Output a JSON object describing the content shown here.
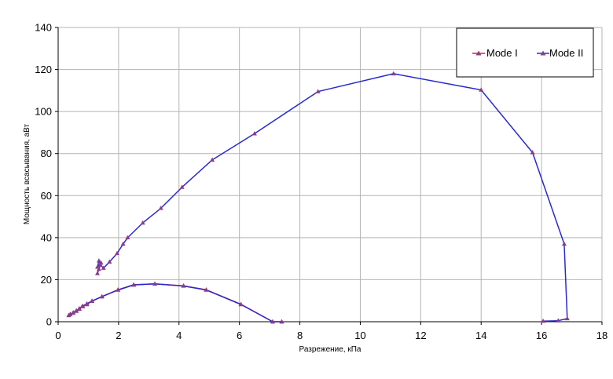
{
  "chart_data": {
    "type": "line",
    "xlabel": "Разрежение, кПа",
    "ylabel": "Мощность всасывания, аВт",
    "xlim": [
      0,
      18
    ],
    "ylim": [
      0,
      140
    ],
    "x_ticks": [
      "0",
      "2",
      "4",
      "6",
      "8",
      "10",
      "12",
      "14",
      "16",
      "18"
    ],
    "y_ticks": [
      "0",
      "20",
      "40",
      "60",
      "80",
      "100",
      "120",
      "140"
    ],
    "grid": true,
    "legend_position": "top-right",
    "colors": {
      "Mode I": "#e8202a",
      "Mode II": "#2a2ad0",
      "marker": "#8a3d8a"
    },
    "series": [
      {
        "name": "Mode I",
        "points": [
          [
            0.35,
            3.0
          ],
          [
            0.4,
            3.5
          ],
          [
            0.5,
            4.2
          ],
          [
            0.6,
            5.0
          ],
          [
            0.7,
            6.0
          ],
          [
            0.82,
            7.2
          ],
          [
            0.95,
            8.2
          ],
          [
            1.12,
            9.8
          ],
          [
            1.45,
            12.0
          ],
          [
            1.98,
            15.2
          ],
          [
            2.5,
            17.6
          ],
          [
            3.2,
            18.0
          ],
          [
            4.15,
            17.1
          ],
          [
            4.9,
            15.2
          ],
          [
            6.05,
            8.3
          ],
          [
            7.1,
            0.0
          ],
          [
            7.4,
            0.0
          ]
        ]
      },
      {
        "name": "Mode II",
        "points": [
          [
            0.35,
            3.0
          ],
          [
            0.4,
            3.6
          ],
          [
            0.5,
            4.4
          ],
          [
            0.6,
            5.3
          ],
          [
            0.7,
            6.3
          ],
          [
            0.8,
            7.4
          ],
          [
            0.95,
            8.6
          ],
          [
            1.12,
            9.9
          ],
          [
            1.45,
            11.9
          ],
          [
            1.98,
            15.1
          ],
          [
            2.5,
            17.5
          ],
          [
            3.2,
            18.0
          ],
          [
            4.15,
            17.0
          ],
          [
            4.9,
            15.1
          ],
          [
            6.05,
            8.2
          ],
          [
            7.1,
            0.0
          ],
          [
            7.4,
            0.0
          ]
        ]
      },
      {
        "name": "Mode II",
        "points": [
          [
            1.3,
            23.0
          ],
          [
            1.35,
            25.0
          ],
          [
            1.42,
            28.0
          ],
          [
            1.3,
            26.0
          ],
          [
            1.35,
            29.0
          ],
          [
            1.4,
            27.0
          ],
          [
            1.5,
            25.5
          ],
          [
            1.7,
            28.5
          ],
          [
            1.95,
            32.5
          ],
          [
            2.15,
            37.0
          ],
          [
            2.3,
            40.0
          ],
          [
            2.8,
            47.0
          ],
          [
            3.4,
            54.0
          ],
          [
            4.1,
            64.0
          ],
          [
            5.1,
            77.0
          ],
          [
            6.5,
            89.5
          ],
          [
            8.6,
            109.5
          ],
          [
            11.1,
            118.0
          ],
          [
            14.0,
            110.3
          ],
          [
            15.7,
            80.5
          ],
          [
            16.75,
            37.0
          ],
          [
            16.85,
            1.5
          ],
          [
            16.55,
            0.5
          ],
          [
            16.05,
            0.3
          ]
        ]
      }
    ],
    "legend": [
      "Mode I",
      "Mode II"
    ]
  }
}
